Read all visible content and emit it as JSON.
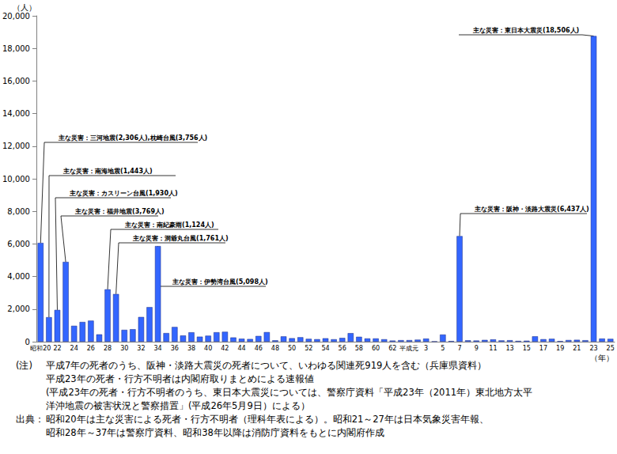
{
  "chart_data": {
    "type": "bar",
    "y_label": "（人）",
    "x_label": "（年）",
    "color": "#3366ff",
    "grid": false,
    "categories": [
      "昭和20",
      null,
      "22",
      null,
      "24",
      null,
      "26",
      null,
      "28",
      null,
      "30",
      null,
      "32",
      null,
      "34",
      null,
      "36",
      null,
      "38",
      null,
      "40",
      null,
      "42",
      null,
      "44",
      null,
      "46",
      null,
      "48",
      null,
      "50",
      null,
      "52",
      null,
      "54",
      null,
      "56",
      null,
      "58",
      null,
      "60",
      null,
      "62",
      null,
      "平成元",
      null,
      "3",
      null,
      "5",
      null,
      "7",
      null,
      "9",
      null,
      "11",
      null,
      "13",
      null,
      "15",
      null,
      "17",
      null,
      "19",
      null,
      "21",
      null,
      "23",
      null,
      "25"
    ],
    "values": [
      6062,
      1504,
      1950,
      4897,
      975,
      1210,
      1291,
      449,
      3212,
      2926,
      727,
      765,
      1515,
      2120,
      5868,
      528,
      902,
      381,
      575,
      307,
      367,
      578,
      607,
      259,
      183,
      163,
      350,
      587,
      85,
      324,
      213,
      273,
      174,
      153,
      208,
      148,
      232,
      524,
      301,
      199,
      199,
      148,
      69,
      93,
      96,
      123,
      190,
      19,
      438,
      39,
      6482,
      84,
      71,
      109,
      141,
      78,
      90,
      48,
      62,
      327,
      153,
      177,
      39,
      101,
      115,
      89,
      18760,
      192,
      173
    ],
    "ylim": [
      0,
      20000
    ],
    "yticks": [
      0,
      {
        "value": 2000,
        "label": "2,000"
      },
      {
        "value": 4000,
        "label": "4,000"
      },
      {
        "value": 6000,
        "label": "6,000"
      },
      {
        "value": 8000,
        "label": "8,000"
      },
      {
        "value": 10000,
        "label": "10,000"
      },
      {
        "value": 12000,
        "label": "12,000"
      },
      {
        "value": 14000,
        "label": "14,000"
      },
      {
        "value": 16000,
        "label": "16,000"
      },
      {
        "value": 18000,
        "label": "18,000"
      },
      {
        "value": 20000,
        "label": "20,000"
      }
    ],
    "annotations": [
      "主な災害：三河地震(2,306人),枕崎台風(3,756人)",
      "主な災害：南海地震(1,443人)",
      "主な災害：カスリーン台風(1,930人)",
      "主な災害：福井地震(3,769人)",
      "主な災害：南紀豪雨(1,124人)",
      "主な災害：洞爺丸台風(1,761人)",
      "主な災害：伊勢湾台風(5,098人)",
      "主な災害：阪神・淡路大震災(6,437人)",
      "主な災害：東日本大震災(18,506人)"
    ],
    "notes": [
      {
        "head": "(注)",
        "lines": [
          "平成7年の死者のうち、阪神・淡路大震災の死者について、いわゆる関連死919人を含む（兵庫県資料）",
          "平成23年の死者・行方不明者は内閣府取りまとめによる速報値",
          "(平成23年の死者・行方不明者のうち、東日本大震災については、警察庁資料「平成23年（2011年）東北地方太平",
          "洋沖地震の被害状況と警察措置」(平成26年5月9日）による）"
        ]
      },
      {
        "head": "出典：",
        "lines": [
          "昭和20年は主な災害による死者・行方不明者（理科年表による）。昭和21～27年は日本気象災害年報、",
          "昭和28年～37年は警察庁資料、昭和38年以降は消防庁資料をもとに内閣府作成"
        ]
      }
    ]
  }
}
